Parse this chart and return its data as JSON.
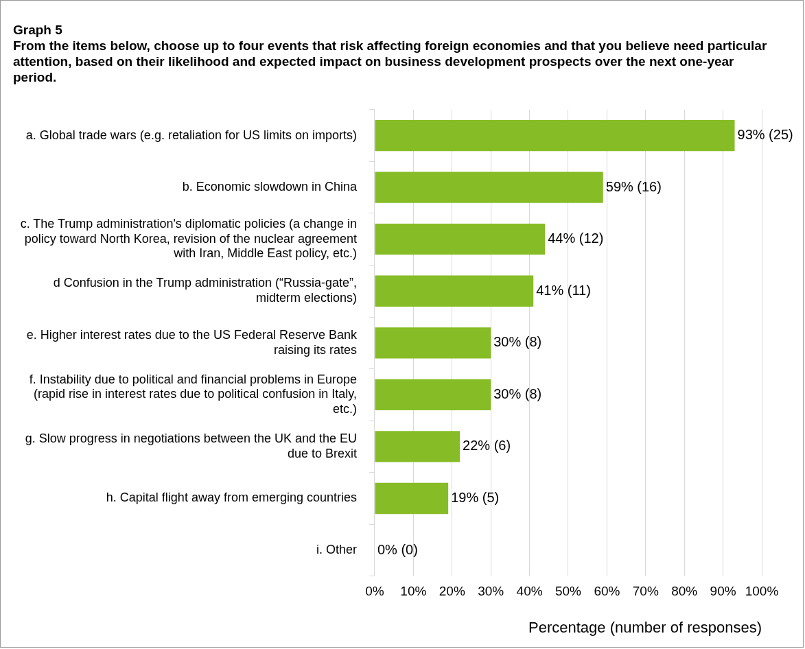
{
  "chart_data": {
    "type": "bar",
    "orientation": "horizontal",
    "title": "Graph 5",
    "subtitle": "From the items below, choose up to four events that risk affecting foreign economies and that you believe need particular attention, based on their likelihood and expected impact on business development prospects over the next one-year period.",
    "categories": [
      "a. Global trade wars (e.g. retaliation for US limits on imports)",
      "b. Economic slowdown in China",
      "c. The Trump administration's diplomatic policies (a change in policy toward North Korea, revision of the nuclear agreement with Iran, Middle East policy, etc.)",
      "d Confusion in the Trump administration (“Russia-gate”, midterm elections)",
      "e. Higher interest rates due to the US Federal Reserve Bank raising its rates",
      "f. Instability due to political and financial problems in Europe (rapid rise in interest rates due to political confusion in Italy, etc.)",
      "g. Slow progress in negotiations between the UK and the EU due to Brexit",
      "h. Capital flight away from emerging countries",
      "i. Other"
    ],
    "values": [
      93,
      59,
      44,
      41,
      30,
      30,
      22,
      19,
      0
    ],
    "value_labels": [
      "93% (25)",
      "59% (16)",
      "44% (12)",
      "41% (11)",
      "30% (8)",
      "30% (8)",
      "22% (6)",
      "19% (5)",
      "0% (0)"
    ],
    "color": "#86bc25",
    "xlabel": "Percentage (number of responses)",
    "xlim": [
      0,
      100
    ],
    "xticks": [
      {
        "value": 0,
        "label": "0%"
      },
      {
        "value": 10,
        "label": "10%"
      },
      {
        "value": 20,
        "label": "20%"
      },
      {
        "value": 30,
        "label": "30%"
      },
      {
        "value": 40,
        "label": "40%"
      },
      {
        "value": 50,
        "label": "50%"
      },
      {
        "value": 60,
        "label": "60%"
      },
      {
        "value": 70,
        "label": "70%"
      },
      {
        "value": 80,
        "label": "80%"
      },
      {
        "value": 90,
        "label": "90%"
      },
      {
        "value": 100,
        "label": "100%"
      }
    ],
    "grid": "x",
    "legend": false
  }
}
